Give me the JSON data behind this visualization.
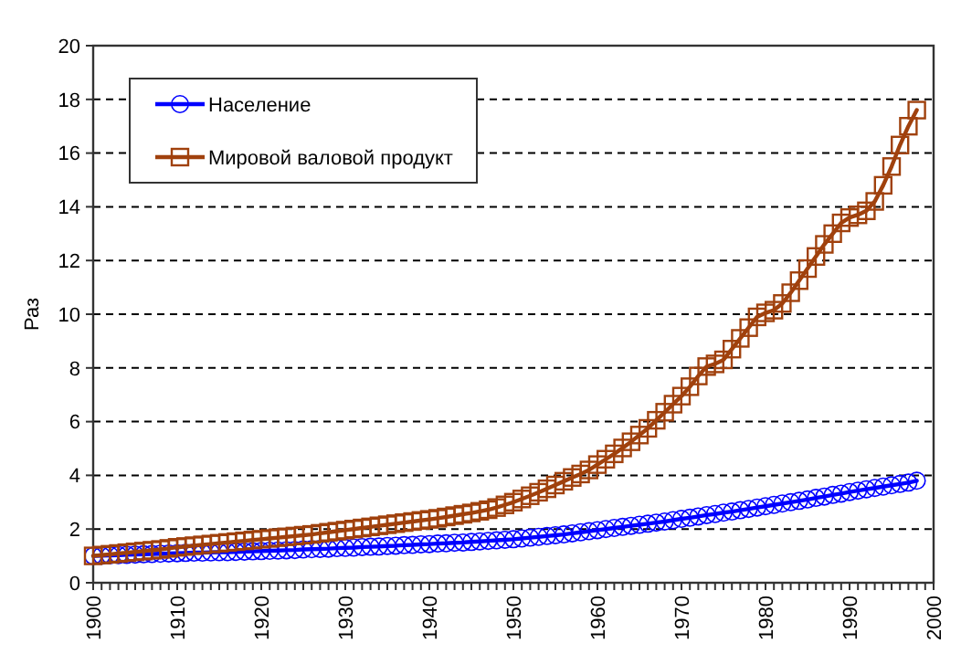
{
  "chart_data": {
    "type": "line",
    "ylabel": "Раз",
    "x": [
      1900,
      1901,
      1902,
      1903,
      1904,
      1905,
      1906,
      1907,
      1908,
      1909,
      1910,
      1911,
      1912,
      1913,
      1914,
      1915,
      1916,
      1917,
      1918,
      1919,
      1920,
      1921,
      1922,
      1923,
      1924,
      1925,
      1926,
      1927,
      1928,
      1929,
      1930,
      1931,
      1932,
      1933,
      1934,
      1935,
      1936,
      1937,
      1938,
      1939,
      1940,
      1941,
      1942,
      1943,
      1944,
      1945,
      1946,
      1947,
      1948,
      1949,
      1950,
      1951,
      1952,
      1953,
      1954,
      1955,
      1956,
      1957,
      1958,
      1959,
      1960,
      1961,
      1962,
      1963,
      1964,
      1965,
      1966,
      1967,
      1968,
      1969,
      1970,
      1971,
      1972,
      1973,
      1974,
      1975,
      1976,
      1977,
      1978,
      1979,
      1980,
      1981,
      1982,
      1983,
      1984,
      1985,
      1986,
      1987,
      1988,
      1989,
      1990,
      1991,
      1992,
      1993,
      1994,
      1995,
      1996,
      1997,
      1998
    ],
    "series": [
      {
        "name": "Население",
        "color": "#0000ff",
        "marker": "circle",
        "values": [
          1.0,
          1.01,
          1.02,
          1.03,
          1.04,
          1.05,
          1.06,
          1.07,
          1.08,
          1.09,
          1.1,
          1.11,
          1.12,
          1.12,
          1.13,
          1.14,
          1.14,
          1.15,
          1.16,
          1.17,
          1.18,
          1.19,
          1.2,
          1.21,
          1.22,
          1.24,
          1.25,
          1.26,
          1.27,
          1.29,
          1.3,
          1.31,
          1.33,
          1.34,
          1.35,
          1.37,
          1.38,
          1.4,
          1.41,
          1.43,
          1.44,
          1.46,
          1.47,
          1.49,
          1.5,
          1.52,
          1.54,
          1.56,
          1.58,
          1.6,
          1.62,
          1.65,
          1.68,
          1.71,
          1.74,
          1.77,
          1.8,
          1.84,
          1.88,
          1.92,
          1.96,
          2.0,
          2.04,
          2.08,
          2.12,
          2.16,
          2.2,
          2.24,
          2.28,
          2.33,
          2.38,
          2.42,
          2.47,
          2.52,
          2.56,
          2.61,
          2.65,
          2.7,
          2.75,
          2.8,
          2.85,
          2.9,
          2.95,
          3.0,
          3.05,
          3.1,
          3.16,
          3.21,
          3.27,
          3.32,
          3.38,
          3.43,
          3.48,
          3.53,
          3.58,
          3.63,
          3.68,
          3.73,
          3.8
        ]
      },
      {
        "name": "Мировой валовой продукт",
        "color": "#a0410d",
        "marker": "square",
        "values": [
          1.0,
          1.03,
          1.06,
          1.09,
          1.12,
          1.15,
          1.18,
          1.21,
          1.24,
          1.28,
          1.32,
          1.35,
          1.38,
          1.41,
          1.44,
          1.47,
          1.5,
          1.53,
          1.56,
          1.59,
          1.62,
          1.65,
          1.68,
          1.71,
          1.74,
          1.77,
          1.8,
          1.84,
          1.88,
          1.92,
          1.96,
          2.0,
          2.04,
          2.08,
          2.12,
          2.16,
          2.2,
          2.24,
          2.28,
          2.32,
          2.36,
          2.4,
          2.45,
          2.5,
          2.55,
          2.6,
          2.66,
          2.72,
          2.8,
          2.9,
          3.0,
          3.12,
          3.24,
          3.37,
          3.5,
          3.64,
          3.78,
          3.92,
          4.05,
          4.2,
          4.4,
          4.6,
          4.8,
          5.02,
          5.25,
          5.5,
          5.75,
          6.05,
          6.35,
          6.65,
          6.95,
          7.3,
          7.7,
          8.05,
          8.15,
          8.3,
          8.7,
          9.1,
          9.5,
          9.9,
          10.05,
          10.15,
          10.4,
          10.8,
          11.25,
          11.7,
          12.15,
          12.6,
          13.0,
          13.4,
          13.6,
          13.7,
          13.85,
          14.2,
          14.8,
          15.5,
          16.3,
          17.0,
          17.6
        ]
      }
    ],
    "xlim": [
      1900,
      2000
    ],
    "xticks": [
      1900,
      {
        "value": 1901,
        "label": null
      },
      {
        "value": 1902,
        "label": null
      },
      {
        "value": 1903,
        "label": null
      },
      {
        "value": 1904,
        "label": null
      },
      {
        "value": 1905,
        "label": null
      },
      {
        "value": 1906,
        "label": null
      },
      {
        "value": 1907,
        "label": null
      },
      {
        "value": 1908,
        "label": null
      },
      {
        "value": 1909,
        "label": null
      },
      1910,
      {
        "value": 1911,
        "label": null
      },
      {
        "value": 1912,
        "label": null
      },
      {
        "value": 1913,
        "label": null
      },
      {
        "value": 1914,
        "label": null
      },
      {
        "value": 1915,
        "label": null
      },
      {
        "value": 1916,
        "label": null
      },
      {
        "value": 1917,
        "label": null
      },
      {
        "value": 1918,
        "label": null
      },
      {
        "value": 1919,
        "label": null
      },
      1920,
      {
        "value": 1921,
        "label": null
      },
      {
        "value": 1922,
        "label": null
      },
      {
        "value": 1923,
        "label": null
      },
      {
        "value": 1924,
        "label": null
      },
      {
        "value": 1925,
        "label": null
      },
      {
        "value": 1926,
        "label": null
      },
      {
        "value": 1927,
        "label": null
      },
      {
        "value": 1928,
        "label": null
      },
      {
        "value": 1929,
        "label": null
      },
      1930,
      {
        "value": 1931,
        "label": null
      },
      {
        "value": 1932,
        "label": null
      },
      {
        "value": 1933,
        "label": null
      },
      {
        "value": 1934,
        "label": null
      },
      {
        "value": 1935,
        "label": null
      },
      {
        "value": 1936,
        "label": null
      },
      {
        "value": 1937,
        "label": null
      },
      {
        "value": 1938,
        "label": null
      },
      {
        "value": 1939,
        "label": null
      },
      1940,
      {
        "value": 1941,
        "label": null
      },
      {
        "value": 1942,
        "label": null
      },
      {
        "value": 1943,
        "label": null
      },
      {
        "value": 1944,
        "label": null
      },
      {
        "value": 1945,
        "label": null
      },
      {
        "value": 1946,
        "label": null
      },
      {
        "value": 1947,
        "label": null
      },
      {
        "value": 1948,
        "label": null
      },
      {
        "value": 1949,
        "label": null
      },
      1950,
      {
        "value": 1951,
        "label": null
      },
      {
        "value": 1952,
        "label": null
      },
      {
        "value": 1953,
        "label": null
      },
      {
        "value": 1954,
        "label": null
      },
      {
        "value": 1955,
        "label": null
      },
      {
        "value": 1956,
        "label": null
      },
      {
        "value": 1957,
        "label": null
      },
      {
        "value": 1958,
        "label": null
      },
      {
        "value": 1959,
        "label": null
      },
      1960,
      {
        "value": 1961,
        "label": null
      },
      {
        "value": 1962,
        "label": null
      },
      {
        "value": 1963,
        "label": null
      },
      {
        "value": 1964,
        "label": null
      },
      {
        "value": 1965,
        "label": null
      },
      {
        "value": 1966,
        "label": null
      },
      {
        "value": 1967,
        "label": null
      },
      {
        "value": 1968,
        "label": null
      },
      {
        "value": 1969,
        "label": null
      },
      1970,
      {
        "value": 1971,
        "label": null
      },
      {
        "value": 1972,
        "label": null
      },
      {
        "value": 1973,
        "label": null
      },
      {
        "value": 1974,
        "label": null
      },
      {
        "value": 1975,
        "label": null
      },
      {
        "value": 1976,
        "label": null
      },
      {
        "value": 1977,
        "label": null
      },
      {
        "value": 1978,
        "label": null
      },
      {
        "value": 1979,
        "label": null
      },
      1980,
      {
        "value": 1981,
        "label": null
      },
      {
        "value": 1982,
        "label": null
      },
      {
        "value": 1983,
        "label": null
      },
      {
        "value": 1984,
        "label": null
      },
      {
        "value": 1985,
        "label": null
      },
      {
        "value": 1986,
        "label": null
      },
      {
        "value": 1987,
        "label": null
      },
      {
        "value": 1988,
        "label": null
      },
      {
        "value": 1989,
        "label": null
      },
      1990,
      {
        "value": 1991,
        "label": null
      },
      {
        "value": 1992,
        "label": null
      },
      {
        "value": 1993,
        "label": null
      },
      {
        "value": 1994,
        "label": null
      },
      {
        "value": 1995,
        "label": null
      },
      {
        "value": 1996,
        "label": null
      },
      {
        "value": 1997,
        "label": null
      },
      {
        "value": 1998,
        "label": null
      },
      {
        "value": 1999,
        "label": null
      },
      2000
    ],
    "ylim": [
      0,
      20
    ],
    "yticks": [
      0,
      2,
      4,
      6,
      8,
      10,
      12,
      14,
      16,
      18,
      20
    ],
    "grid": "y",
    "line_style": "solid",
    "legend": "top left"
  }
}
